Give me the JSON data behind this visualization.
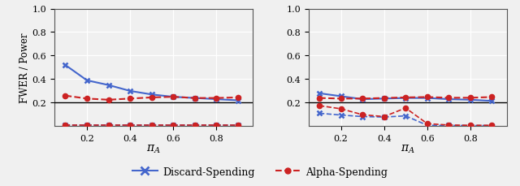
{
  "pi_A": [
    0.1,
    0.2,
    0.3,
    0.4,
    0.5,
    0.6,
    0.7,
    0.8,
    0.9
  ],
  "left_discard_fwer": [
    0.52,
    0.39,
    0.35,
    0.3,
    0.27,
    0.25,
    0.24,
    0.23,
    0.22
  ],
  "left_alpha_fwer": [
    0.26,
    0.235,
    0.225,
    0.235,
    0.245,
    0.25,
    0.24,
    0.24,
    0.245
  ],
  "left_discard_power": [
    0.01,
    0.01,
    0.01,
    0.01,
    0.01,
    0.01,
    0.01,
    0.01,
    0.01
  ],
  "left_alpha_power": [
    0.01,
    0.01,
    0.01,
    0.01,
    0.01,
    0.01,
    0.01,
    0.01,
    0.01
  ],
  "right_discard_fwer": [
    0.28,
    0.255,
    0.23,
    0.235,
    0.24,
    0.24,
    0.23,
    0.225,
    0.215
  ],
  "right_alpha_fwer": [
    0.24,
    0.235,
    0.235,
    0.24,
    0.245,
    0.248,
    0.242,
    0.242,
    0.248
  ],
  "right_discard_power": [
    0.11,
    0.095,
    0.082,
    0.078,
    0.088,
    0.008,
    0.007,
    0.006,
    0.006
  ],
  "right_alpha_power": [
    0.175,
    0.148,
    0.098,
    0.082,
    0.155,
    0.022,
    0.01,
    0.008,
    0.008
  ],
  "hline_y": 0.2,
  "ylim": [
    0.0,
    1.0
  ],
  "yticks": [
    0.2,
    0.4,
    0.6,
    0.8,
    1.0
  ],
  "blue_color": "#4466cc",
  "red_color": "#cc2222",
  "black_color": "#000000",
  "bg_color": "#f0f0f0",
  "ylabel": "FWER / Power",
  "xlabel_math": "$\\pi_A$",
  "legend_discard": "Discard-Spending",
  "legend_alpha": "Alpha-Spending"
}
